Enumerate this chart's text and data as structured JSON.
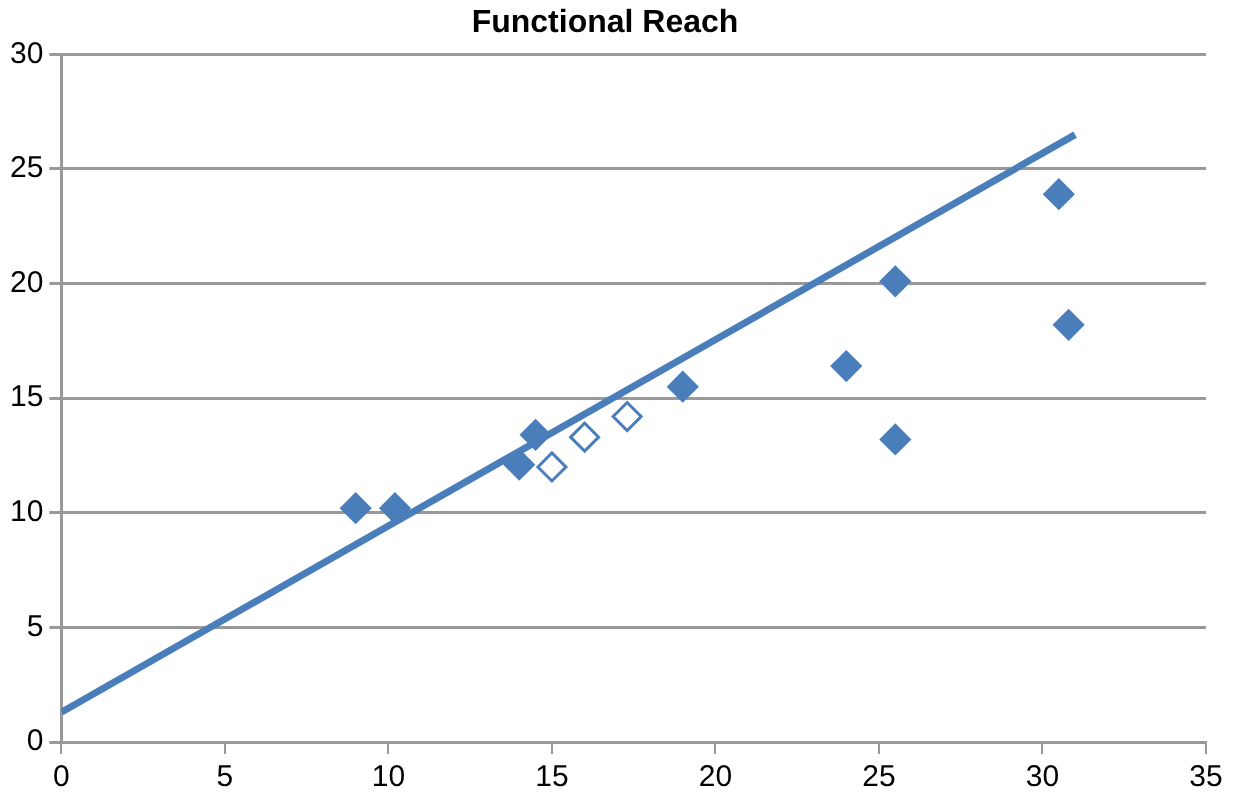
{
  "chart_data": {
    "type": "scatter",
    "title": "Functional Reach",
    "xlim": [
      0,
      35
    ],
    "xticks": [
      0,
      5,
      10,
      15,
      20,
      25,
      30,
      35
    ],
    "ylim": [
      0,
      30
    ],
    "yticks": [
      0,
      5,
      10,
      15,
      20,
      25,
      30
    ],
    "grid": "y",
    "legend": false,
    "series": [
      {
        "color": "#4a7ebb",
        "marker": "diamond",
        "x": [
          9,
          10.2,
          14,
          14.5,
          19,
          24,
          25.5,
          25.5,
          30.5,
          30.8
        ],
        "values": [
          10.2,
          10.2,
          12.1,
          13.4,
          15.5,
          16.4,
          20.1,
          13.2,
          23.9,
          18.2
        ]
      },
      {
        "color": "#ffffff",
        "marker": "diamond",
        "x": [
          15,
          16,
          17.3
        ],
        "values": [
          12,
          13.3,
          14.2
        ]
      },
      {
        "type": "line",
        "color": "#4a7ebb",
        "marker": "none",
        "x": [
          0,
          31
        ],
        "values": [
          1.3,
          26.5
        ]
      }
    ]
  }
}
